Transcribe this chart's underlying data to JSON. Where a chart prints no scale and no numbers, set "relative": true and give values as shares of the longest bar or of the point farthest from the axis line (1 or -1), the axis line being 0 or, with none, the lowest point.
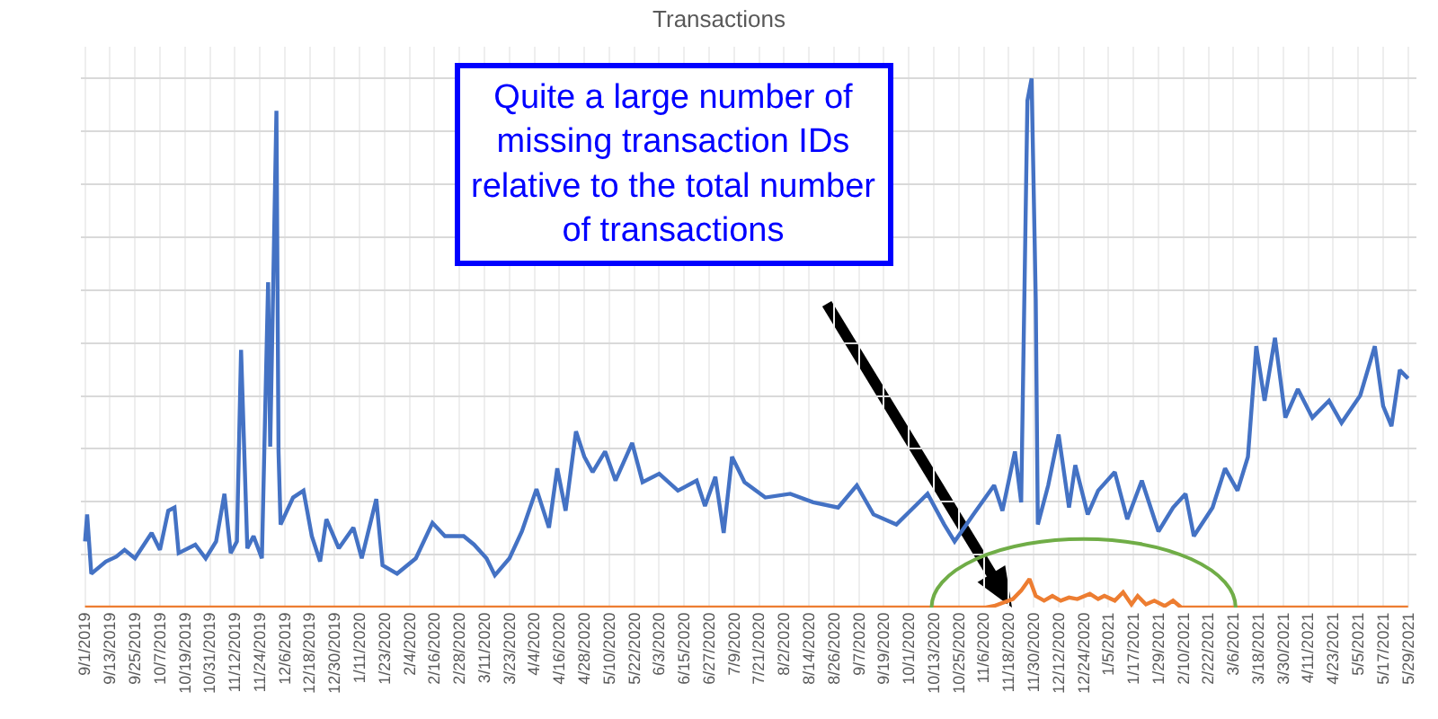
{
  "chart_data": {
    "type": "line",
    "title": "Transactions",
    "relative": true,
    "grid": true,
    "xlim": [
      "2019-08-30",
      "2021-06-02"
    ],
    "xticks": [
      {
        "value": "2019-09-01",
        "label": "9/1/2019"
      },
      {
        "value": "2019-09-13",
        "label": "9/13/2019"
      },
      {
        "value": "2019-09-25",
        "label": "9/25/2019"
      },
      {
        "value": "2019-10-07",
        "label": "10/7/2019"
      },
      {
        "value": "2019-10-19",
        "label": "10/19/2019"
      },
      {
        "value": "2019-10-31",
        "label": "10/31/2019"
      },
      {
        "value": "2019-11-12",
        "label": "11/12/2019"
      },
      {
        "value": "2019-11-24",
        "label": "11/24/2019"
      },
      {
        "value": "2019-12-06",
        "label": "12/6/2019"
      },
      {
        "value": "2019-12-18",
        "label": "12/18/2019"
      },
      {
        "value": "2019-12-30",
        "label": "12/30/2019"
      },
      {
        "value": "2020-01-11",
        "label": "1/11/2020"
      },
      {
        "value": "2020-01-23",
        "label": "1/23/2020"
      },
      {
        "value": "2020-02-04",
        "label": "2/4/2020"
      },
      {
        "value": "2020-02-16",
        "label": "2/16/2020"
      },
      {
        "value": "2020-02-28",
        "label": "2/28/2020"
      },
      {
        "value": "2020-03-11",
        "label": "3/11/2020"
      },
      {
        "value": "2020-03-23",
        "label": "3/23/2020"
      },
      {
        "value": "2020-04-04",
        "label": "4/4/2020"
      },
      {
        "value": "2020-04-16",
        "label": "4/16/2020"
      },
      {
        "value": "2020-04-28",
        "label": "4/28/2020"
      },
      {
        "value": "2020-05-10",
        "label": "5/10/2020"
      },
      {
        "value": "2020-05-22",
        "label": "5/22/2020"
      },
      {
        "value": "2020-06-03",
        "label": "6/3/2020"
      },
      {
        "value": "2020-06-15",
        "label": "6/15/2020"
      },
      {
        "value": "2020-06-27",
        "label": "6/27/2020"
      },
      {
        "value": "2020-07-09",
        "label": "7/9/2020"
      },
      {
        "value": "2020-07-21",
        "label": "7/21/2020"
      },
      {
        "value": "2020-08-02",
        "label": "8/2/2020"
      },
      {
        "value": "2020-08-14",
        "label": "8/14/2020"
      },
      {
        "value": "2020-08-26",
        "label": "8/26/2020"
      },
      {
        "value": "2020-09-07",
        "label": "9/7/2020"
      },
      {
        "value": "2020-09-19",
        "label": "9/19/2020"
      },
      {
        "value": "2020-10-01",
        "label": "10/1/2020"
      },
      {
        "value": "2020-10-13",
        "label": "10/13/2020"
      },
      {
        "value": "2020-10-25",
        "label": "10/25/2020"
      },
      {
        "value": "2020-11-06",
        "label": "11/6/2020"
      },
      {
        "value": "2020-11-18",
        "label": "11/18/2020"
      },
      {
        "value": "2020-11-30",
        "label": "11/30/2020"
      },
      {
        "value": "2020-12-12",
        "label": "12/12/2020"
      },
      {
        "value": "2020-12-24",
        "label": "12/24/2020"
      },
      {
        "value": "2021-01-05",
        "label": "1/5/2021"
      },
      {
        "value": "2021-01-17",
        "label": "1/17/2021"
      },
      {
        "value": "2021-01-29",
        "label": "1/29/2021"
      },
      {
        "value": "2021-02-10",
        "label": "2/10/2021"
      },
      {
        "value": "2021-02-22",
        "label": "2/22/2021"
      },
      {
        "value": "2021-03-06",
        "label": "3/6/2021"
      },
      {
        "value": "2021-03-18",
        "label": "3/18/2021"
      },
      {
        "value": "2021-03-30",
        "label": "3/30/2021"
      },
      {
        "value": "2021-04-11",
        "label": "4/11/2021"
      },
      {
        "value": "2021-04-23",
        "label": "4/23/2021"
      },
      {
        "value": "2021-05-05",
        "label": "5/5/2021"
      },
      {
        "value": "2021-05-17",
        "label": "5/17/2021"
      },
      {
        "value": "2021-05-29",
        "label": "5/29/2021"
      }
    ],
    "series": [
      {
        "color": "#4472c4",
        "x": [
          "2019-09-01",
          "2019-09-02",
          "2019-09-04",
          "2019-09-11",
          "2019-09-16",
          "2019-09-20",
          "2019-09-25",
          "2019-10-03",
          "2019-10-07",
          "2019-10-11",
          "2019-10-14",
          "2019-10-16",
          "2019-10-24",
          "2019-10-29",
          "2019-11-03",
          "2019-11-07",
          "2019-11-10",
          "2019-11-13",
          "2019-11-15",
          "2019-11-18",
          "2019-11-21",
          "2019-11-25",
          "2019-11-28",
          "2019-11-29",
          "2019-12-02",
          "2019-12-03",
          "2019-12-04",
          "2019-12-10",
          "2019-12-15",
          "2019-12-19",
          "2019-12-23",
          "2019-12-26",
          "2020-01-01",
          "2020-01-08",
          "2020-01-12",
          "2020-01-19",
          "2020-01-22",
          "2020-01-29",
          "2020-02-07",
          "2020-02-15",
          "2020-02-21",
          "2020-03-01",
          "2020-03-06",
          "2020-03-12",
          "2020-03-16",
          "2020-03-23",
          "2020-03-29",
          "2020-04-05",
          "2020-04-11",
          "2020-04-15",
          "2020-04-19",
          "2020-04-24",
          "2020-04-28",
          "2020-05-02",
          "2020-05-08",
          "2020-05-13",
          "2020-05-21",
          "2020-05-26",
          "2020-06-03",
          "2020-06-12",
          "2020-06-21",
          "2020-06-25",
          "2020-06-30",
          "2020-07-04",
          "2020-07-08",
          "2020-07-14",
          "2020-07-24",
          "2020-08-05",
          "2020-08-16",
          "2020-08-28",
          "2020-09-06",
          "2020-09-14",
          "2020-09-25",
          "2020-10-10",
          "2020-10-18",
          "2020-10-23",
          "2020-11-01",
          "2020-11-11",
          "2020-11-15",
          "2020-11-21",
          "2020-11-24",
          "2020-11-27",
          "2020-11-29",
          "2020-12-01",
          "2020-12-02",
          "2020-12-07",
          "2020-12-12",
          "2020-12-17",
          "2020-12-20",
          "2020-12-26",
          "2020-12-31",
          "2021-01-08",
          "2021-01-14",
          "2021-01-21",
          "2021-01-29",
          "2021-02-05",
          "2021-02-11",
          "2021-02-15",
          "2021-02-24",
          "2021-03-02",
          "2021-03-08",
          "2021-03-13",
          "2021-03-17",
          "2021-03-21",
          "2021-03-26",
          "2021-03-31",
          "2021-04-06",
          "2021-04-13",
          "2021-04-21",
          "2021-04-27",
          "2021-05-06",
          "2021-05-13",
          "2021-05-17",
          "2021-05-21",
          "2021-05-25",
          "2021-05-29"
        ],
        "values": [
          0.125,
          0.176,
          0.064,
          0.087,
          0.096,
          0.109,
          0.093,
          0.141,
          0.109,
          0.183,
          0.189,
          0.103,
          0.119,
          0.093,
          0.125,
          0.215,
          0.103,
          0.125,
          0.487,
          0.112,
          0.135,
          0.093,
          0.615,
          0.304,
          0.939,
          0.295,
          0.157,
          0.208,
          0.221,
          0.135,
          0.087,
          0.167,
          0.112,
          0.151,
          0.093,
          0.205,
          0.08,
          0.064,
          0.093,
          0.16,
          0.135,
          0.135,
          0.119,
          0.093,
          0.061,
          0.093,
          0.144,
          0.224,
          0.151,
          0.263,
          0.183,
          0.333,
          0.285,
          0.256,
          0.295,
          0.24,
          0.311,
          0.237,
          0.253,
          0.221,
          0.24,
          0.192,
          0.247,
          0.141,
          0.285,
          0.237,
          0.208,
          0.215,
          0.199,
          0.189,
          0.231,
          0.176,
          0.157,
          0.215,
          0.157,
          0.125,
          0.176,
          0.231,
          0.183,
          0.295,
          0.199,
          0.958,
          1,
          0.583,
          0.157,
          0.231,
          0.327,
          0.189,
          0.269,
          0.176,
          0.221,
          0.256,
          0.167,
          0.24,
          0.144,
          0.189,
          0.215,
          0.135,
          0.189,
          0.263,
          0.221,
          0.285,
          0.494,
          0.391,
          0.51,
          0.359,
          0.413,
          0.359,
          0.391,
          0.349,
          0.401,
          0.494,
          0.381,
          0.343,
          0.449,
          0.433
        ]
      },
      {
        "color": "#ed7d31",
        "x": [
          "2019-09-01",
          "2020-11-07",
          "2020-11-11",
          "2020-11-20",
          "2020-11-24",
          "2020-11-28",
          "2020-12-01",
          "2020-12-05",
          "2020-12-09",
          "2020-12-13",
          "2020-12-17",
          "2020-12-21",
          "2020-12-27",
          "2020-12-31",
          "2021-01-03",
          "2021-01-08",
          "2021-01-12",
          "2021-01-16",
          "2021-01-19",
          "2021-01-23",
          "2021-01-27",
          "2021-02-01",
          "2021-02-05",
          "2021-02-09",
          "2021-05-29"
        ],
        "values": [
          0,
          0,
          0.003,
          0.016,
          0.032,
          0.054,
          0.022,
          0.013,
          0.022,
          0.013,
          0.019,
          0.016,
          0.026,
          0.016,
          0.022,
          0.013,
          0.029,
          0.006,
          0.022,
          0.006,
          0.013,
          0.003,
          0.013,
          0,
          0
        ]
      }
    ],
    "annotations": [
      "Quite a large number of missing transaction IDs relative to the total number of transactions"
    ]
  }
}
